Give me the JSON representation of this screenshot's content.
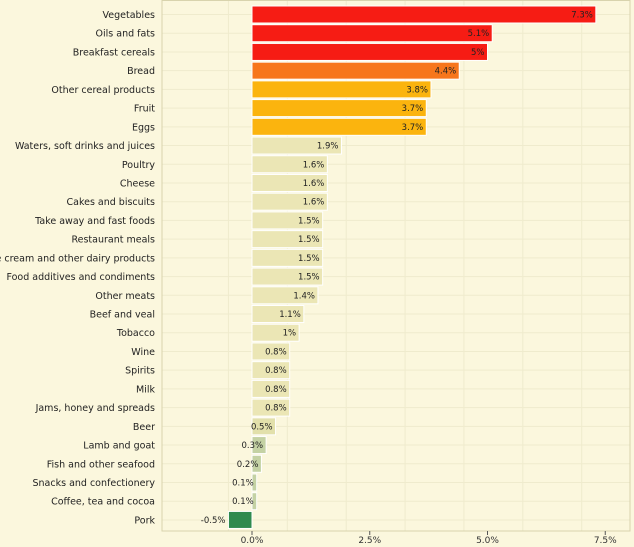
{
  "chart_data": {
    "type": "bar",
    "orientation": "horizontal",
    "categories": [
      "Vegetables",
      "Oils and fats",
      "Breakfast cereals",
      "Bread",
      "Other cereal products",
      "Fruit",
      "Eggs",
      "Waters, soft drinks and juices",
      "Poultry",
      "Cheese",
      "Cakes and biscuits",
      "Take away and fast foods",
      "Restaurant meals",
      "Ice cream and other dairy products",
      "Food additives and condiments",
      "Other meats",
      "Beef and veal",
      "Tobacco",
      "Wine",
      "Spirits",
      "Milk",
      "Jams, honey and spreads",
      "Beer",
      "Lamb and goat",
      "Fish and other seafood",
      "Snacks and confectionery",
      "Coffee, tea and cocoa",
      "Pork"
    ],
    "values": [
      7.3,
      5.1,
      5.0,
      4.4,
      3.8,
      3.7,
      3.7,
      1.9,
      1.6,
      1.6,
      1.6,
      1.5,
      1.5,
      1.5,
      1.5,
      1.4,
      1.1,
      1.0,
      0.8,
      0.8,
      0.8,
      0.8,
      0.5,
      0.3,
      0.2,
      0.1,
      0.1,
      -0.5
    ],
    "value_labels": [
      "7.3%",
      "5.1%",
      "5%",
      "4.4%",
      "3.8%",
      "3.7%",
      "3.7%",
      "1.9%",
      "1.6%",
      "1.6%",
      "1.6%",
      "1.5%",
      "1.5%",
      "1.5%",
      "1.5%",
      "1.4%",
      "1.1%",
      "1%",
      "0.8%",
      "0.8%",
      "0.8%",
      "0.8%",
      "0.5%",
      "0.3%",
      "0.2%",
      "0.1%",
      "0.1%",
      "-0.5%"
    ],
    "bar_colors": [
      "#f61c14",
      "#f61c14",
      "#f61c14",
      "#f7761c",
      "#fbb40e",
      "#fbb40e",
      "#fbb40e",
      "#ebe6b5",
      "#ebe6b5",
      "#ebe6b5",
      "#ebe6b5",
      "#ebe6b5",
      "#ebe6b5",
      "#ebe6b5",
      "#ebe6b5",
      "#ebe6b5",
      "#ebe6b5",
      "#ebe6b5",
      "#ebe6b5",
      "#ebe6b5",
      "#ebe6b5",
      "#ebe6b5",
      "#e2e0ab",
      "#c4d2a4",
      "#c4d2a4",
      "#c4d2a4",
      "#c4d2a4",
      "#2f8a4e"
    ],
    "x_ticks": [
      0,
      2.5,
      5.0,
      7.5
    ],
    "x_tick_labels": [
      "0.0%",
      "2.5%",
      "5.0%",
      "7.5%"
    ],
    "xlim": [
      -1.0,
      7.6
    ],
    "grid": true
  }
}
